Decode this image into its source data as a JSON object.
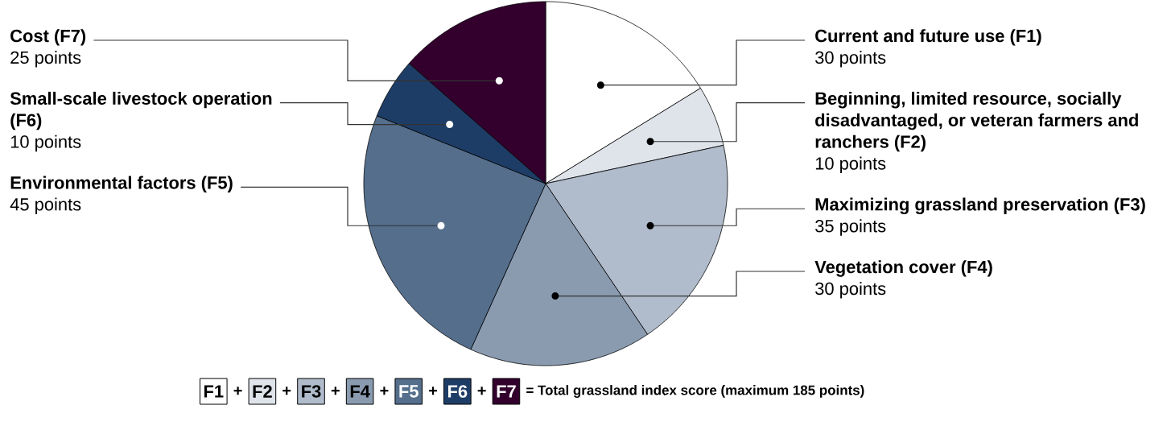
{
  "chart_data": {
    "type": "pie",
    "categories": [
      "Current and future use (F1)",
      "Beginning, limited resource, socially disadvantaged, or veteran farmers and ranchers (F2)",
      "Maximizing grassland preservation (F3)",
      "Vegetation cover (F4)",
      "Environmental factors (F5)",
      "Small-scale livestock operation (F6)",
      "Cost (F7)"
    ],
    "values": [
      30,
      10,
      35,
      30,
      45,
      10,
      25
    ],
    "colors": [
      "#ffffff",
      "#dfe3ea",
      "#b0bccb",
      "#8a9bb0",
      "#546e8c",
      "#1e3d66",
      "#33002e"
    ],
    "value_labels": [
      "30 points",
      "10 points",
      "35 points",
      "30 points",
      "45 points",
      "10 points",
      "25 points"
    ],
    "annotations": [
      "F1",
      "+",
      "F2",
      "+",
      "F3",
      "+",
      "F4",
      "+",
      "F5",
      "+",
      "F6",
      "+",
      "F7",
      "= Total grassland index score (maximum 185 points)"
    ]
  }
}
